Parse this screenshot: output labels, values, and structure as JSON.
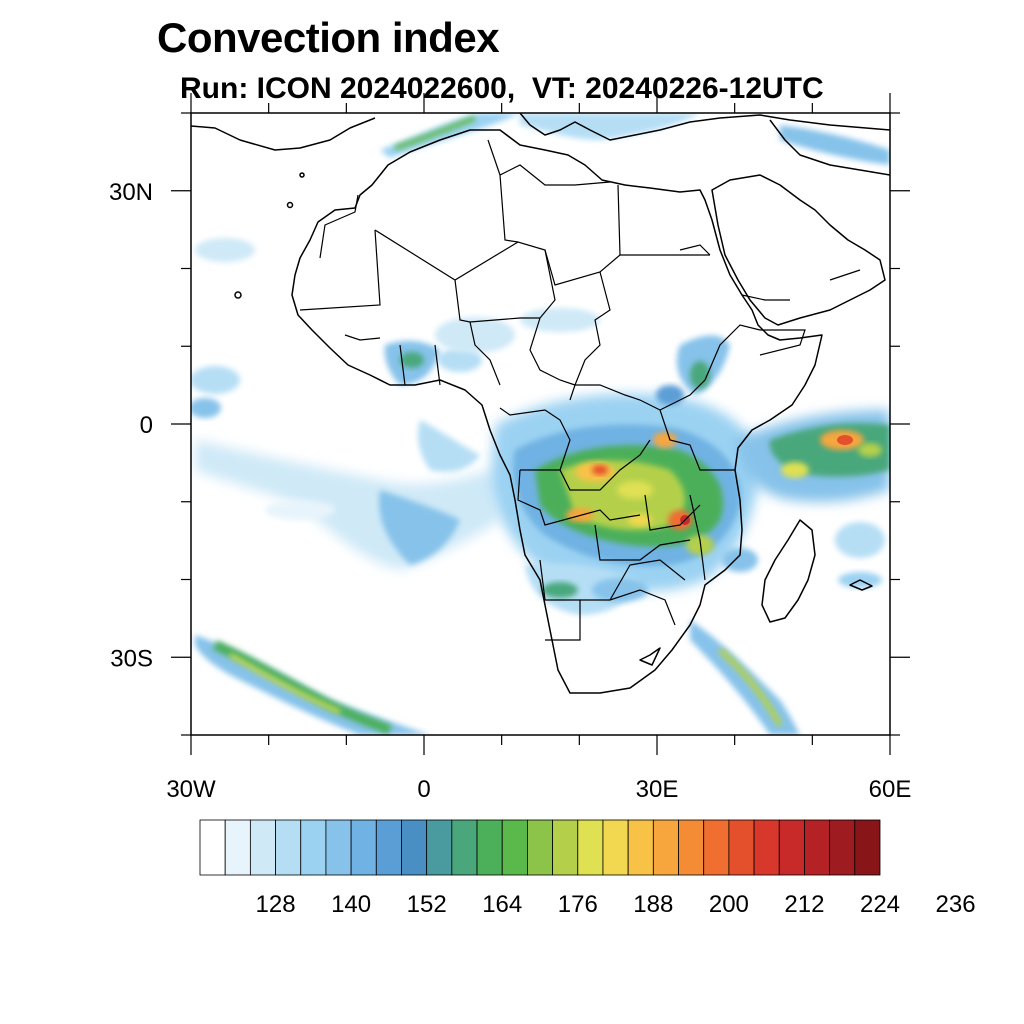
{
  "title": "Convection index",
  "subtitle": "Run: ICON 2024022600,  VT: 20240226-12UTC",
  "map": {
    "lon_range": [
      -30,
      60
    ],
    "lat_range": [
      -40,
      40
    ],
    "lon_ticks": [
      {
        "lon": -30,
        "label": "30W"
      },
      {
        "lon": 0,
        "label": "0"
      },
      {
        "lon": 30,
        "label": "30E"
      },
      {
        "lon": 60,
        "label": "60E"
      }
    ],
    "lat_ticks": [
      {
        "lat": 30,
        "label": "30N"
      },
      {
        "lat": 0,
        "label": "0"
      },
      {
        "lat": -30,
        "label": "30S"
      }
    ]
  },
  "colorbar": {
    "labels": [
      "128",
      "140",
      "152",
      "164",
      "176",
      "188",
      "200",
      "212",
      "224",
      "236"
    ],
    "colors": [
      "#ffffff",
      "#e8f4fb",
      "#cfe9f7",
      "#b5def5",
      "#9bd2f2",
      "#86c2ea",
      "#6fb2e3",
      "#5b9ed6",
      "#4a8fc4",
      "#4a9ba0",
      "#4aa77c",
      "#4caf5a",
      "#5bb84a",
      "#8cc44a",
      "#b4d04b",
      "#dfe052",
      "#f2d850",
      "#f7c246",
      "#f6a63c",
      "#f38c35",
      "#ef6e30",
      "#e4502c",
      "#d8372b",
      "#c82a2a",
      "#b42226",
      "#9e1b1f",
      "#881518"
    ]
  },
  "colors": {
    "coastline": "#000000",
    "border": "#000000"
  }
}
